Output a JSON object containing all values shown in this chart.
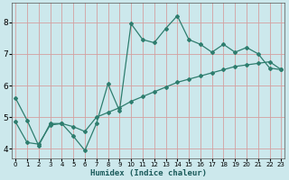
{
  "xlabel": "Humidex (Indice chaleur)",
  "ylabel": "",
  "bg_color": "#cce8ec",
  "grid_color": "#d4a0a0",
  "line_color": "#2e7d6e",
  "x_ticks": [
    0,
    1,
    2,
    3,
    4,
    5,
    6,
    7,
    8,
    9,
    10,
    11,
    12,
    13,
    14,
    15,
    16,
    17,
    18,
    19,
    20,
    21,
    22,
    23
  ],
  "y_ticks": [
    4,
    5,
    6,
    7,
    8
  ],
  "ylim": [
    3.7,
    8.6
  ],
  "xlim": [
    -0.3,
    23.3
  ],
  "zigzag_x": [
    0,
    1,
    2,
    3,
    4,
    5,
    6,
    7,
    8,
    9,
    10,
    11,
    12,
    13,
    14,
    15,
    16,
    17,
    18,
    19,
    20,
    21,
    22,
    23
  ],
  "zigzag_y": [
    5.6,
    4.9,
    4.1,
    4.8,
    4.8,
    4.4,
    3.95,
    4.8,
    6.05,
    5.2,
    7.95,
    7.45,
    7.35,
    7.8,
    8.2,
    7.45,
    7.3,
    7.05,
    7.3,
    7.05,
    7.2,
    7.0,
    6.55,
    6.5
  ],
  "trend_x": [
    0,
    1,
    2,
    3,
    4,
    5,
    6,
    7,
    8,
    9,
    10,
    11,
    12,
    13,
    14,
    15,
    16,
    17,
    18,
    19,
    20,
    21,
    22,
    23
  ],
  "trend_y": [
    4.85,
    4.2,
    4.15,
    4.75,
    4.8,
    4.7,
    4.55,
    5.0,
    5.15,
    5.3,
    5.5,
    5.65,
    5.8,
    5.95,
    6.1,
    6.2,
    6.3,
    6.4,
    6.5,
    6.6,
    6.65,
    6.7,
    6.75,
    6.5
  ]
}
